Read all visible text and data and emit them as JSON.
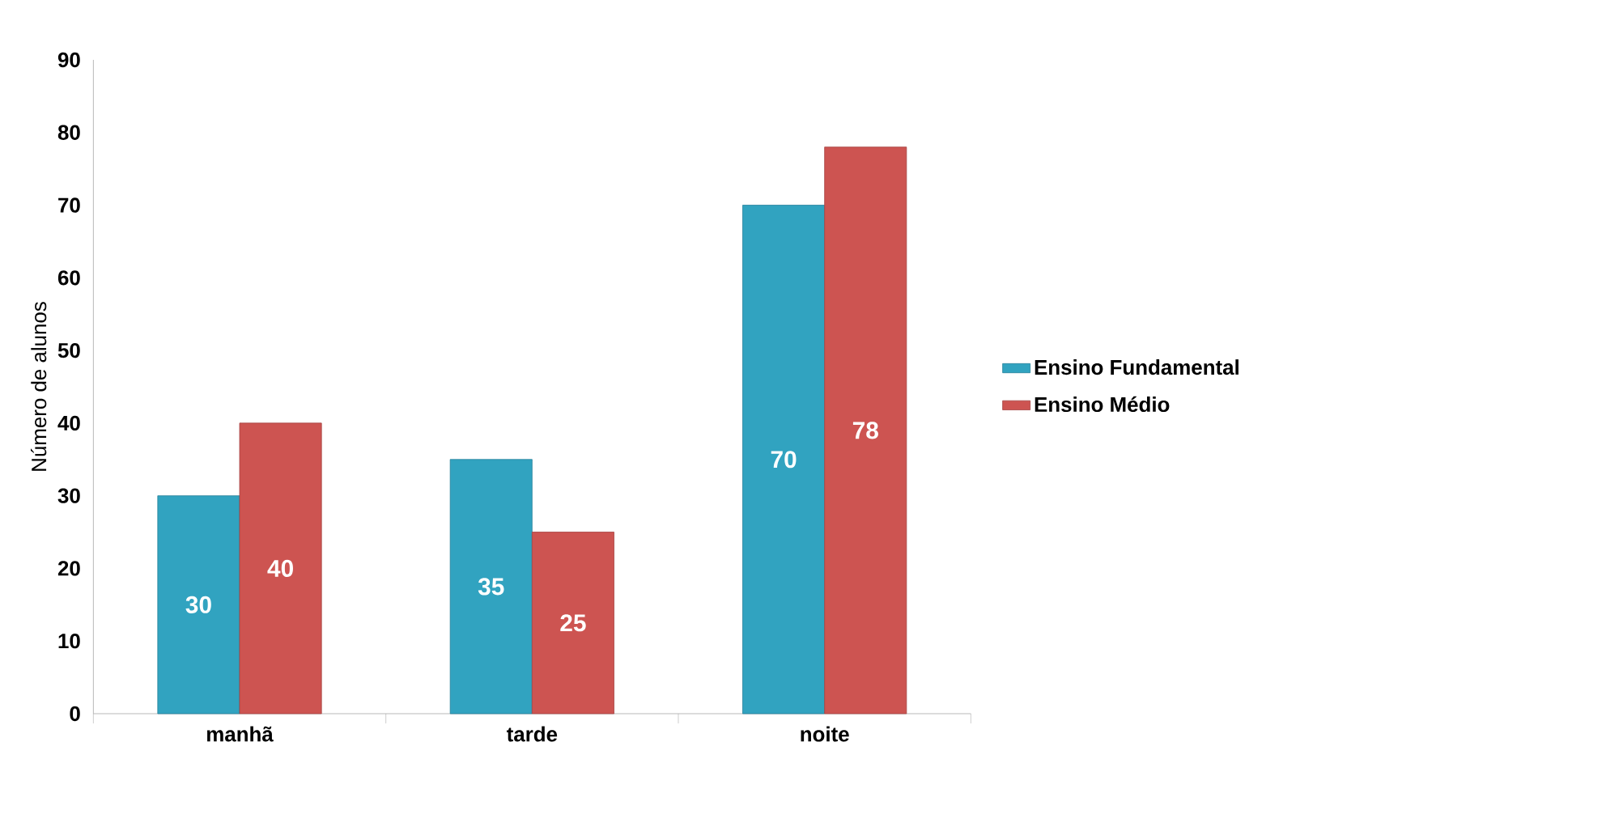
{
  "chart_data": {
    "type": "bar",
    "ylabel": "Número de alunos",
    "categories": [
      "manhã",
      "tarde",
      "noite"
    ],
    "series": [
      {
        "name": "Ensino Fundamental",
        "color": "#31a3c0",
        "values": [
          30,
          35,
          70
        ]
      },
      {
        "name": "Ensino Médio",
        "color": "#cd5451",
        "values": [
          40,
          25,
          78
        ]
      }
    ],
    "ylim": [
      0,
      90
    ],
    "yticks": [
      0,
      10,
      20,
      30,
      40,
      50,
      60,
      70,
      80,
      90
    ],
    "data_labels": true,
    "legend": "right",
    "grid": false
  }
}
